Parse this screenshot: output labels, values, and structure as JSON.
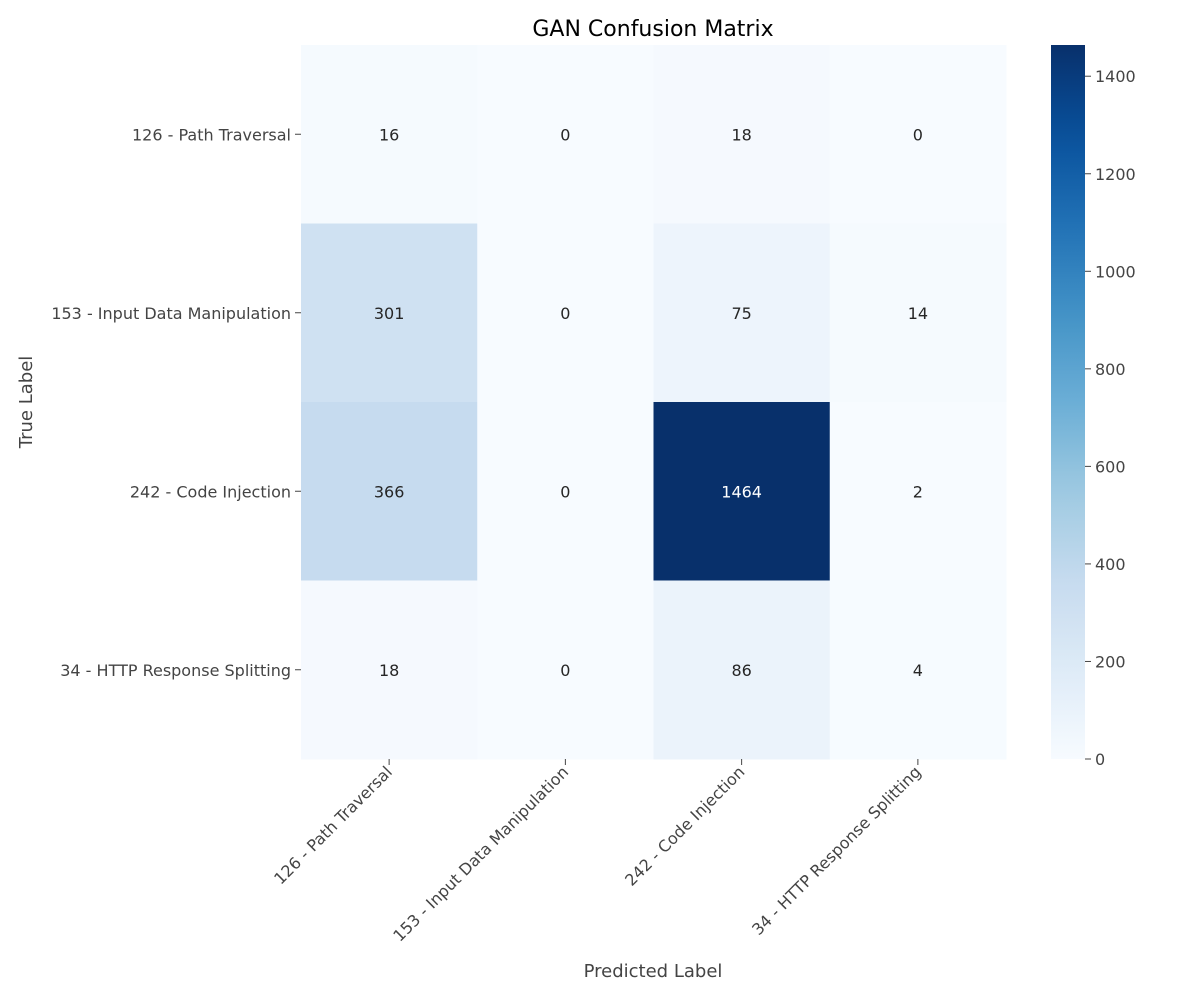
{
  "chart_data": {
    "type": "heatmap",
    "title": "GAN Confusion Matrix",
    "xlabel": "Predicted Label",
    "ylabel": "True Label",
    "x_categories": [
      "126 - Path Traversal",
      "153 - Input Data Manipulation",
      "242 - Code Injection",
      "34 - HTTP Response Splitting"
    ],
    "y_categories": [
      "126 - Path Traversal",
      "153 - Input Data Manipulation",
      "242 - Code Injection",
      "34 - HTTP Response Splitting"
    ],
    "values": [
      [
        16,
        0,
        18,
        0
      ],
      [
        301,
        0,
        75,
        14
      ],
      [
        366,
        0,
        1464,
        2
      ],
      [
        18,
        0,
        86,
        4
      ]
    ],
    "colorbar": {
      "min": 0,
      "max": 1464,
      "ticks": [
        0,
        200,
        400,
        600,
        800,
        1000,
        1200,
        1400
      ],
      "colormap": "Blues"
    },
    "grid": false
  }
}
